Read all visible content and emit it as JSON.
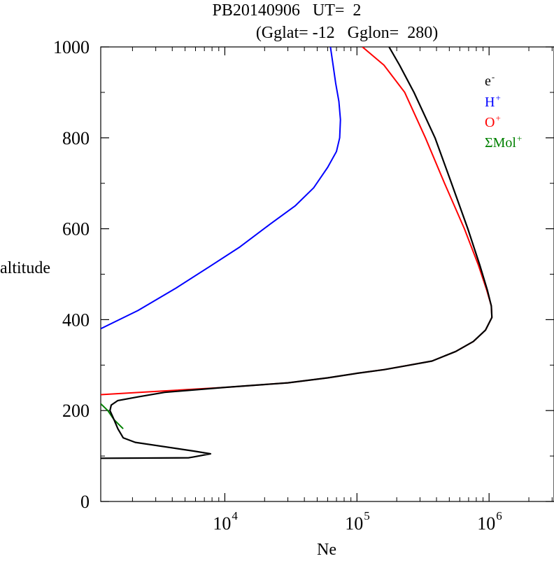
{
  "chart_data": {
    "type": "line",
    "title_line1": "PB20140906   UT=  2",
    "title_line2": "(Gglat= -12   Gglon=  280)",
    "xlabel": "Ne",
    "ylabel": "altitude",
    "x_scale": "log",
    "xlim": [
      1150,
      3100000
    ],
    "ylim": [
      0,
      1000
    ],
    "y_ticks": [
      0,
      200,
      400,
      600,
      800,
      1000
    ],
    "y_tick_labels": [
      "0",
      "200",
      "400",
      "600",
      "800",
      "1000"
    ],
    "x_ticks": [
      10000,
      100000,
      1000000
    ],
    "x_tick_labels": [
      {
        "base": "10",
        "exp": "4"
      },
      {
        "base": "10",
        "exp": "5"
      },
      {
        "base": "10",
        "exp": "6"
      }
    ],
    "legend_position": "top-right",
    "series": [
      {
        "key": "Hplus",
        "name": "H",
        "sup": "+",
        "color": "#0000ff",
        "points": [
          [
            1150,
            380
          ],
          [
            2200,
            420
          ],
          [
            4300,
            470
          ],
          [
            7500,
            515
          ],
          [
            13000,
            560
          ],
          [
            22000,
            610
          ],
          [
            34000,
            650
          ],
          [
            47000,
            690
          ],
          [
            60000,
            735
          ],
          [
            70000,
            770
          ],
          [
            74000,
            800
          ],
          [
            75000,
            840
          ],
          [
            73000,
            880
          ],
          [
            69000,
            920
          ],
          [
            66000,
            960
          ],
          [
            63000,
            1000
          ]
        ]
      },
      {
        "key": "Oplus",
        "name": "O",
        "sup": "+",
        "color": "#ff0000",
        "points": [
          [
            1150,
            235
          ],
          [
            3000,
            242
          ],
          [
            10000,
            251
          ],
          [
            30000,
            261
          ],
          [
            60000,
            272
          ],
          [
            100000,
            282
          ],
          [
            160000,
            290
          ],
          [
            240000,
            299
          ],
          [
            370000,
            309
          ],
          [
            560000,
            330
          ],
          [
            760000,
            352
          ],
          [
            940000,
            377
          ],
          [
            1050000,
            405
          ],
          [
            1040000,
            430
          ],
          [
            960000,
            465
          ],
          [
            830000,
            520
          ],
          [
            650000,
            600
          ],
          [
            460000,
            700
          ],
          [
            330000,
            800
          ],
          [
            230000,
            900
          ],
          [
            160000,
            960
          ],
          [
            110000,
            1000
          ]
        ]
      },
      {
        "key": "Molplus",
        "name": "ΣMol",
        "sup": "+",
        "color": "#008000",
        "points": [
          [
            1150,
            215
          ],
          [
            1300,
            200
          ],
          [
            1450,
            180
          ],
          [
            1700,
            160
          ]
        ]
      },
      {
        "key": "electrons",
        "name": "e",
        "sup": "-",
        "color": "#000000",
        "points": [
          [
            1150,
            95
          ],
          [
            5300,
            96
          ],
          [
            5800,
            98
          ],
          [
            7800,
            105
          ],
          [
            5800,
            111
          ],
          [
            2100,
            130
          ],
          [
            1700,
            140
          ],
          [
            1550,
            160
          ],
          [
            1450,
            180
          ],
          [
            1350,
            200
          ],
          [
            1380,
            212
          ],
          [
            1550,
            222
          ],
          [
            2200,
            230
          ],
          [
            3500,
            240
          ],
          [
            10000,
            251
          ],
          [
            30000,
            261
          ],
          [
            60000,
            272
          ],
          [
            100000,
            282
          ],
          [
            160000,
            290
          ],
          [
            240000,
            299
          ],
          [
            370000,
            309
          ],
          [
            560000,
            330
          ],
          [
            760000,
            352
          ],
          [
            940000,
            377
          ],
          [
            1050000,
            405
          ],
          [
            1040000,
            430
          ],
          [
            970000,
            465
          ],
          [
            850000,
            520
          ],
          [
            690000,
            600
          ],
          [
            520000,
            700
          ],
          [
            390000,
            800
          ],
          [
            270000,
            900
          ],
          [
            210000,
            960
          ],
          [
            175000,
            1000
          ]
        ]
      }
    ]
  }
}
